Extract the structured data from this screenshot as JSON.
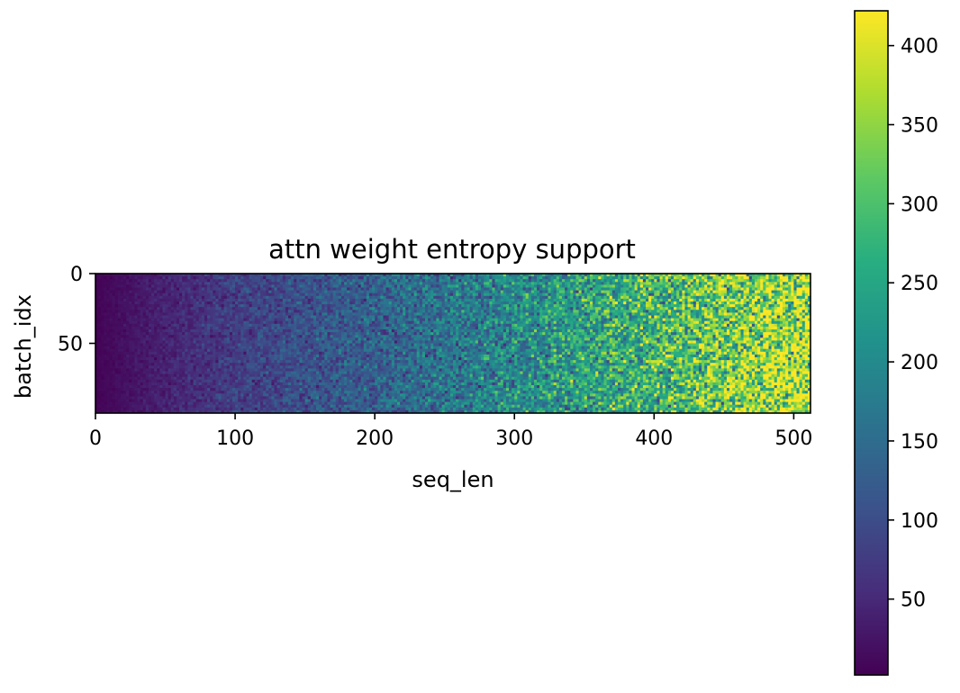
{
  "chart_data": {
    "type": "heatmap",
    "title": "attn weight entropy support",
    "xlabel": "seq_len",
    "ylabel": "batch_idx",
    "x_range": [
      0,
      512
    ],
    "y_range": [
      0,
      100
    ],
    "y_inverted": true,
    "x_ticks": [
      0,
      100,
      200,
      300,
      400,
      500
    ],
    "y_ticks": [
      0,
      50
    ],
    "colorbar": {
      "range": [
        2,
        422
      ],
      "ticks": [
        50,
        100,
        150,
        200,
        250,
        300,
        350,
        400
      ]
    },
    "colormap": "viridis",
    "value_trend": [
      {
        "seq_len": 0,
        "value": 5
      },
      {
        "seq_len": 100,
        "value": 80
      },
      {
        "seq_len": 200,
        "value": 130
      },
      {
        "seq_len": 300,
        "value": 200
      },
      {
        "seq_len": 400,
        "value": 280
      },
      {
        "seq_len": 511,
        "value": 390
      }
    ],
    "grid": false
  }
}
